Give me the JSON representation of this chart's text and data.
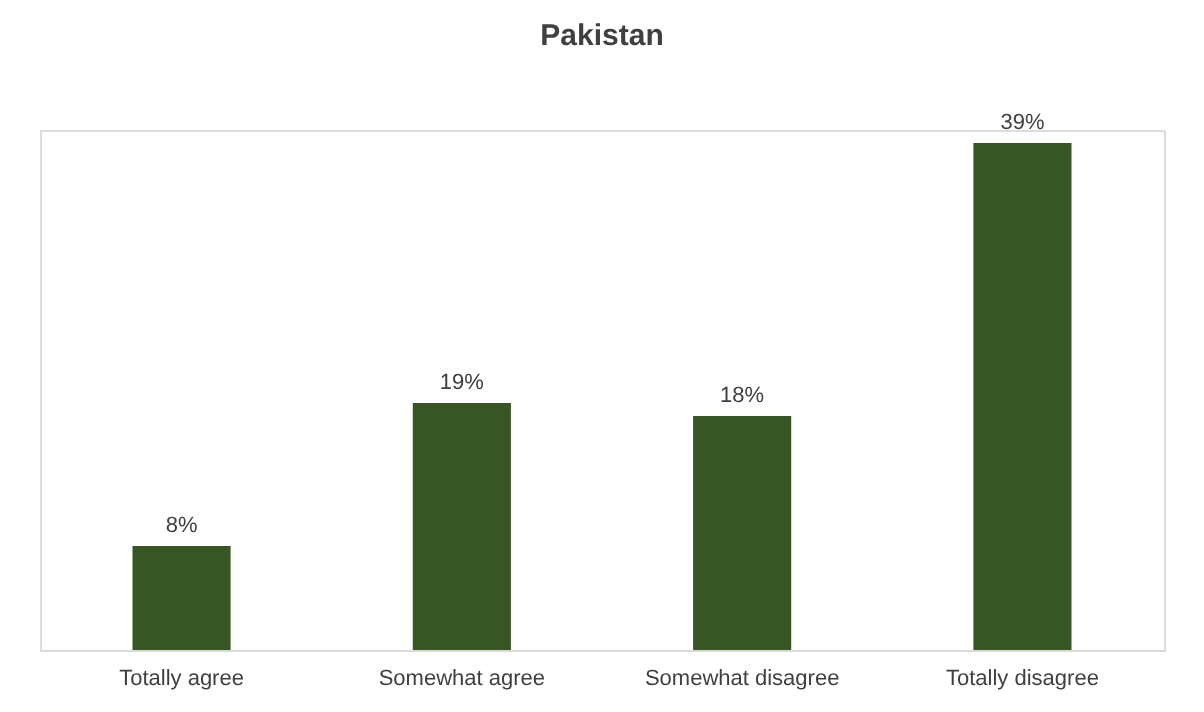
{
  "chart_data": {
    "type": "bar",
    "title": "Pakistan",
    "categories": [
      "Totally agree",
      "Somewhat agree",
      "Somewhat disagree",
      "Totally disagree"
    ],
    "values": [
      8,
      19,
      18,
      39
    ],
    "value_labels": [
      "8%",
      "19%",
      "18%",
      "39%"
    ],
    "color": "#375623",
    "grid": false
  }
}
